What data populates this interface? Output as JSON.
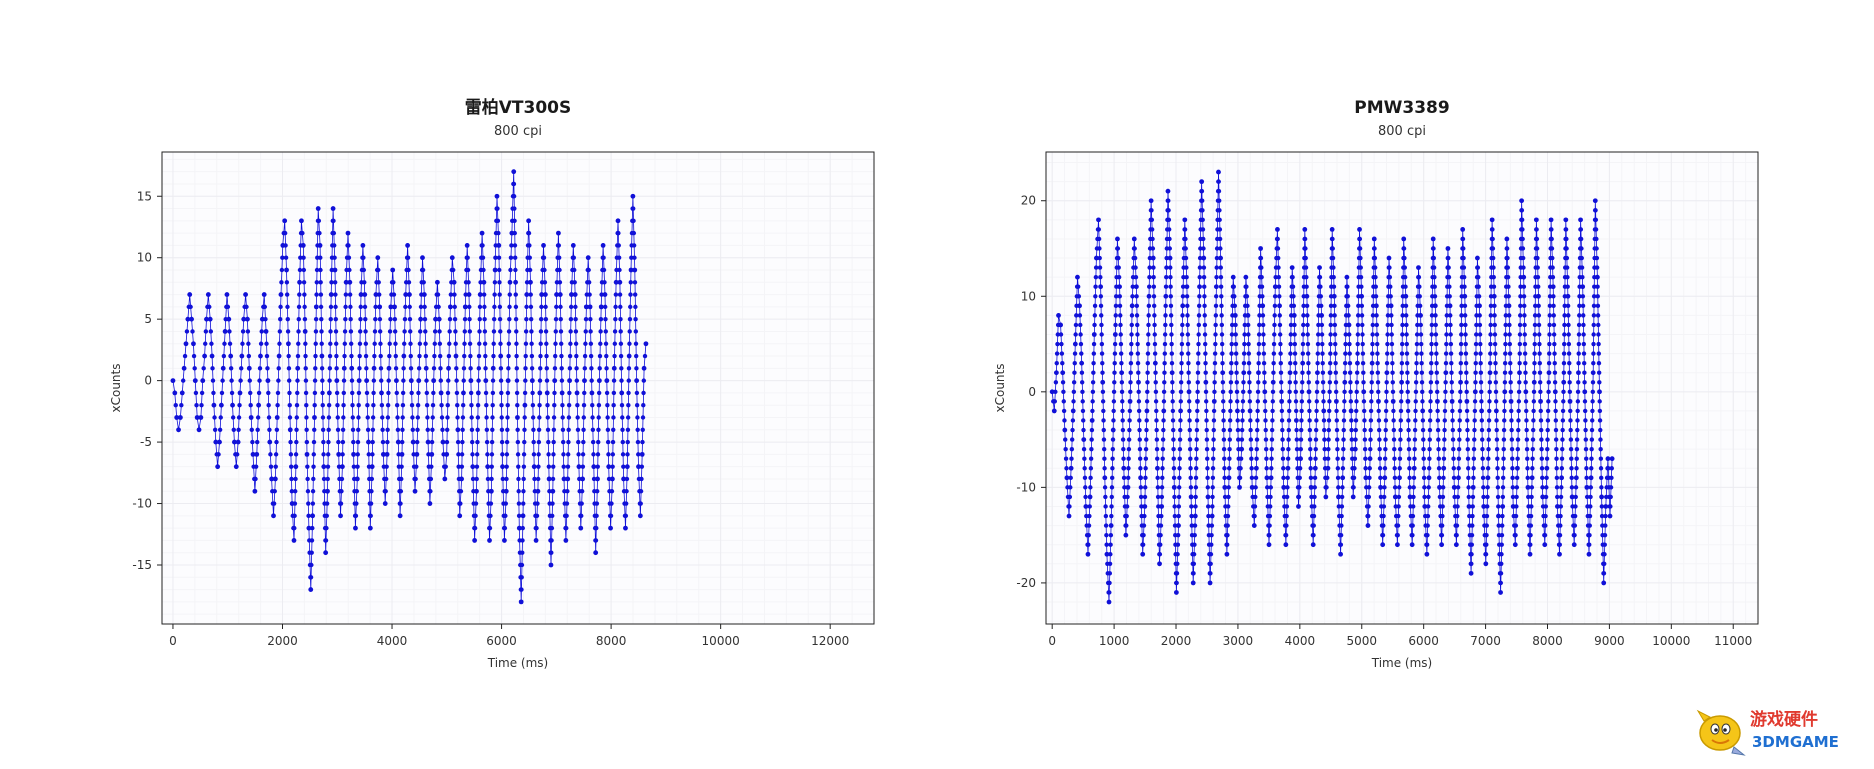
{
  "chart_data": [
    {
      "type": "scatter",
      "title": "雷柏VT300S",
      "subtitle": "800 cpi",
      "xlabel": "Time (ms)",
      "ylabel": "xCounts",
      "xlim": [
        -200,
        12800
      ],
      "ylim": [
        -19.8,
        18.6
      ],
      "xticks": [
        0,
        2000,
        4000,
        6000,
        8000,
        10000,
        12000
      ],
      "yticks": [
        -15,
        -10,
        -5,
        0,
        5,
        10,
        15
      ],
      "ytick_labels": [
        "-15",
        "-10",
        "-5",
        "0",
        "5",
        "10",
        "15"
      ],
      "grid": true,
      "color": "#1010d8",
      "x_start": 0,
      "x_step": 34,
      "series": [
        {
          "values": [
            0,
            -1,
            -3,
            -4,
            -3,
            -1,
            1,
            3,
            5,
            7,
            5,
            3,
            0,
            -3,
            -4,
            -3,
            0,
            2,
            5,
            7,
            5,
            2,
            -2,
            -5,
            -7,
            -5,
            -2,
            1,
            4,
            7,
            5,
            2,
            -2,
            -5,
            -7,
            -5,
            -1,
            2,
            5,
            7,
            5,
            1,
            -3,
            -6,
            -9,
            -6,
            -2,
            2,
            5,
            7,
            4,
            0,
            -5,
            -8,
            -11,
            -8,
            -3,
            2,
            7,
            11,
            13,
            9,
            3,
            -4,
            -10,
            -13,
            -7,
            1,
            8,
            13,
            11,
            4,
            -6,
            -12,
            -17,
            -11,
            -3,
            6,
            14,
            11,
            2,
            -7,
            -14,
            -9,
            -1,
            7,
            14,
            9,
            0,
            -6,
            -11,
            -7,
            1,
            8,
            12,
            8,
            1,
            -6,
            -12,
            -8,
            0,
            7,
            11,
            7,
            0,
            -5,
            -12,
            -7,
            1,
            7,
            10,
            6,
            -1,
            -6,
            -10,
            -6,
            1,
            6,
            9,
            6,
            0,
            -5,
            -11,
            -6,
            2,
            7,
            11,
            7,
            0,
            -5,
            -9,
            -6,
            0,
            5,
            10,
            7,
            1,
            -5,
            -10,
            -6,
            0,
            5,
            8,
            5,
            -1,
            -5,
            -8,
            -6,
            1,
            6,
            10,
            8,
            2,
            -4,
            -11,
            -8,
            -1,
            6,
            11,
            7,
            0,
            -7,
            -13,
            -9,
            -1,
            7,
            12,
            8,
            0,
            -7,
            -13,
            -9,
            1,
            9,
            15,
            11,
            2,
            -7,
            -13,
            -9,
            0,
            8,
            12,
            17,
            8,
            -3,
            -12,
            -18,
            -11,
            -2,
            7,
            13,
            8,
            0,
            -7,
            -13,
            -9,
            -1,
            7,
            11,
            7,
            -1,
            -8,
            -15,
            -9,
            0,
            7,
            12,
            7,
            -1,
            -8,
            -13,
            -8,
            0,
            7,
            11,
            7,
            -1,
            -7,
            -12,
            -8,
            0,
            6,
            10,
            6,
            -1,
            -7,
            -14,
            -8,
            0,
            6,
            11,
            7,
            0,
            -7,
            -12,
            -8,
            1,
            8,
            13,
            8,
            -1,
            -8,
            -12,
            -7,
            2,
            9,
            15,
            9,
            0,
            -7,
            -11,
            -6,
            1,
            3
          ]
        }
      ]
    },
    {
      "type": "scatter",
      "title": "PMW3389",
      "subtitle": "800 cpi",
      "xlabel": "Time (ms)",
      "ylabel": "xCounts",
      "xlim": [
        -100,
        11400
      ],
      "ylim": [
        -24.3,
        25.1
      ],
      "xticks": [
        0,
        1000,
        2000,
        3000,
        4000,
        5000,
        6000,
        7000,
        8000,
        9000,
        10000,
        11000
      ],
      "yticks": [
        -20,
        -10,
        0,
        10,
        20
      ],
      "ytick_labels": [
        "-20",
        "-10",
        "0",
        "10",
        "20"
      ],
      "grid": true,
      "color": "#1010d8",
      "x_start": 0,
      "x_step": 34,
      "series": [
        {
          "values": [
            0,
            -2,
            2,
            8,
            7,
            2,
            -4,
            -9,
            -13,
            -8,
            -2,
            5,
            12,
            9,
            3,
            -5,
            -12,
            -17,
            -11,
            -3,
            6,
            14,
            18,
            11,
            1,
            -9,
            -17,
            -22,
            -14,
            -4,
            6,
            16,
            11,
            2,
            -8,
            -15,
            -10,
            -1,
            9,
            16,
            11,
            1,
            -9,
            -17,
            -12,
            -2,
            10,
            20,
            14,
            3,
            -8,
            -18,
            -12,
            -2,
            10,
            21,
            14,
            2,
            -10,
            -21,
            -14,
            -2,
            9,
            18,
            11,
            0,
            -11,
            -20,
            -13,
            -1,
            11,
            22,
            14,
            1,
            -11,
            -20,
            -13,
            -1,
            11,
            23,
            14,
            2,
            -10,
            -17,
            -9,
            2,
            12,
            8,
            -2,
            -10,
            -6,
            2,
            12,
            8,
            -2,
            -10,
            -14,
            -8,
            2,
            15,
            9,
            0,
            -9,
            -16,
            -9,
            1,
            11,
            17,
            9,
            -1,
            -10,
            -16,
            -8,
            2,
            13,
            8,
            -3,
            -12,
            -7,
            3,
            17,
            10,
            0,
            -10,
            -16,
            -8,
            2,
            13,
            8,
            -2,
            -11,
            -8,
            2,
            17,
            10,
            -1,
            -11,
            -17,
            -9,
            1,
            12,
            7,
            -2,
            -11,
            -6,
            3,
            17,
            10,
            0,
            -9,
            -14,
            -7,
            3,
            16,
            9,
            -1,
            -10,
            -16,
            -9,
            2,
            14,
            9,
            -1,
            -11,
            -16,
            -9,
            1,
            16,
            10,
            -1,
            -11,
            -16,
            -8,
            2,
            13,
            8,
            -2,
            -12,
            -17,
            -9,
            2,
            16,
            9,
            -1,
            -10,
            -16,
            -8,
            2,
            15,
            9,
            -1,
            -10,
            -16,
            -9,
            1,
            17,
            10,
            -1,
            -12,
            -19,
            -10,
            0,
            14,
            9,
            -2,
            -12,
            -18,
            -9,
            2,
            18,
            10,
            -2,
            -13,
            -21,
            -12,
            0,
            16,
            9,
            -1,
            -12,
            -16,
            -8,
            2,
            20,
            12,
            0,
            -10,
            -17,
            -9,
            1,
            18,
            10,
            -1,
            -11,
            -16,
            -8,
            2,
            18,
            11,
            0,
            -12,
            -17,
            -9,
            1,
            18,
            10,
            -1,
            -11,
            -16,
            -9,
            2,
            18,
            11,
            0,
            -10,
            -17,
            -9,
            2,
            20,
            12,
            0,
            -11,
            -20,
            -12,
            -7,
            -13,
            -7
          ]
        }
      ]
    }
  ],
  "watermark": {
    "line1": "游戏硬件",
    "line2": "3DMGAME",
    "colors": {
      "red": "#e03a2f",
      "blue": "#1f6fd1",
      "mascot": "#f5c518"
    }
  }
}
